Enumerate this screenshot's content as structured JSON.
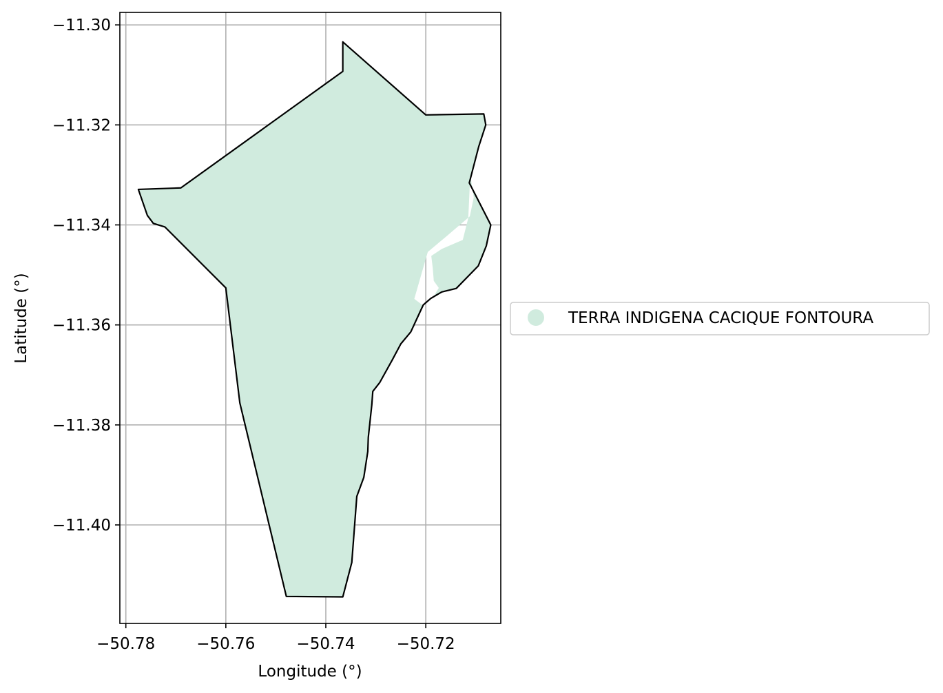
{
  "chart_data": {
    "type": "map",
    "title": "",
    "xlabel": "Longitude (°)",
    "ylabel": "Latitude (°)",
    "xlim": [
      -50.7812,
      -50.705
    ],
    "ylim": [
      -11.4197,
      -11.2975
    ],
    "grid": true,
    "legend_placement": "center-right-outside",
    "x_ticks": [
      {
        "value": -50.78,
        "label": "−50.78"
      },
      {
        "value": -50.76,
        "label": "−50.76"
      },
      {
        "value": -50.74,
        "label": "−50.74"
      },
      {
        "value": -50.72,
        "label": "−50.72"
      }
    ],
    "y_ticks": [
      {
        "value": -11.3,
        "label": "−11.30"
      },
      {
        "value": -11.32,
        "label": "−11.32"
      },
      {
        "value": -11.34,
        "label": "−11.34"
      },
      {
        "value": -11.36,
        "label": "−11.36"
      },
      {
        "value": -11.38,
        "label": "−11.38"
      },
      {
        "value": -11.4,
        "label": "−11.40"
      }
    ],
    "series": [
      {
        "name": "TERRA INDIGENA CACIQUE FONTOURA",
        "fill": "#d0ebde",
        "stroke": "#000000",
        "outline": [
          [
            -50.7366,
            -11.3034
          ],
          [
            -50.7366,
            -11.3093
          ],
          [
            -50.769,
            -11.3326
          ],
          [
            -50.7775,
            -11.3329
          ],
          [
            -50.7757,
            -11.3381
          ],
          [
            -50.7745,
            -11.3397
          ],
          [
            -50.7722,
            -11.3404
          ],
          [
            -50.76,
            -11.3526
          ],
          [
            -50.7572,
            -11.3756
          ],
          [
            -50.7479,
            -11.4143
          ],
          [
            -50.7366,
            -11.4144
          ],
          [
            -50.7348,
            -11.4075
          ],
          [
            -50.7338,
            -11.3943
          ],
          [
            -50.7324,
            -11.3905
          ],
          [
            -50.7316,
            -11.3853
          ],
          [
            -50.7315,
            -11.3825
          ],
          [
            -50.7308,
            -11.376
          ],
          [
            -50.7306,
            -11.3733
          ],
          [
            -50.7292,
            -11.3715
          ],
          [
            -50.7267,
            -11.367
          ],
          [
            -50.725,
            -11.3638
          ],
          [
            -50.723,
            -11.3614
          ],
          [
            -50.7212,
            -11.3575
          ],
          [
            -50.7205,
            -11.356
          ],
          [
            -50.719,
            -11.3547
          ],
          [
            -50.7168,
            -11.3534
          ],
          [
            -50.7139,
            -11.3527
          ],
          [
            -50.7095,
            -11.3482
          ],
          [
            -50.7079,
            -11.3442
          ],
          [
            -50.707,
            -11.34
          ],
          [
            -50.7113,
            -11.3316
          ],
          [
            -50.7094,
            -11.3243
          ],
          [
            -50.708,
            -11.32
          ],
          [
            -50.7084,
            -11.3178
          ],
          [
            -50.72,
            -11.318
          ],
          [
            -50.7366,
            -11.3034
          ]
        ],
        "hole": [
          [
            -50.7111,
            -11.33
          ],
          [
            -50.7104,
            -11.3345
          ],
          [
            -50.7112,
            -11.3383
          ],
          [
            -50.716,
            -11.3424
          ],
          [
            -50.7196,
            -11.3454
          ],
          [
            -50.7223,
            -11.3548
          ],
          [
            -50.7207,
            -11.356
          ],
          [
            -50.7185,
            -11.3544
          ],
          [
            -50.7174,
            -11.3526
          ],
          [
            -50.7184,
            -11.3512
          ],
          [
            -50.7186,
            -11.3487
          ],
          [
            -50.7189,
            -11.3462
          ],
          [
            -50.7168,
            -11.3448
          ],
          [
            -50.7126,
            -11.343
          ],
          [
            -50.7115,
            -11.3386
          ],
          [
            -50.7111,
            -11.33
          ]
        ]
      }
    ]
  },
  "legend": {
    "items": [
      {
        "label": "TERRA INDIGENA CACIQUE FONTOURA",
        "color": "#d0ebde"
      }
    ]
  }
}
